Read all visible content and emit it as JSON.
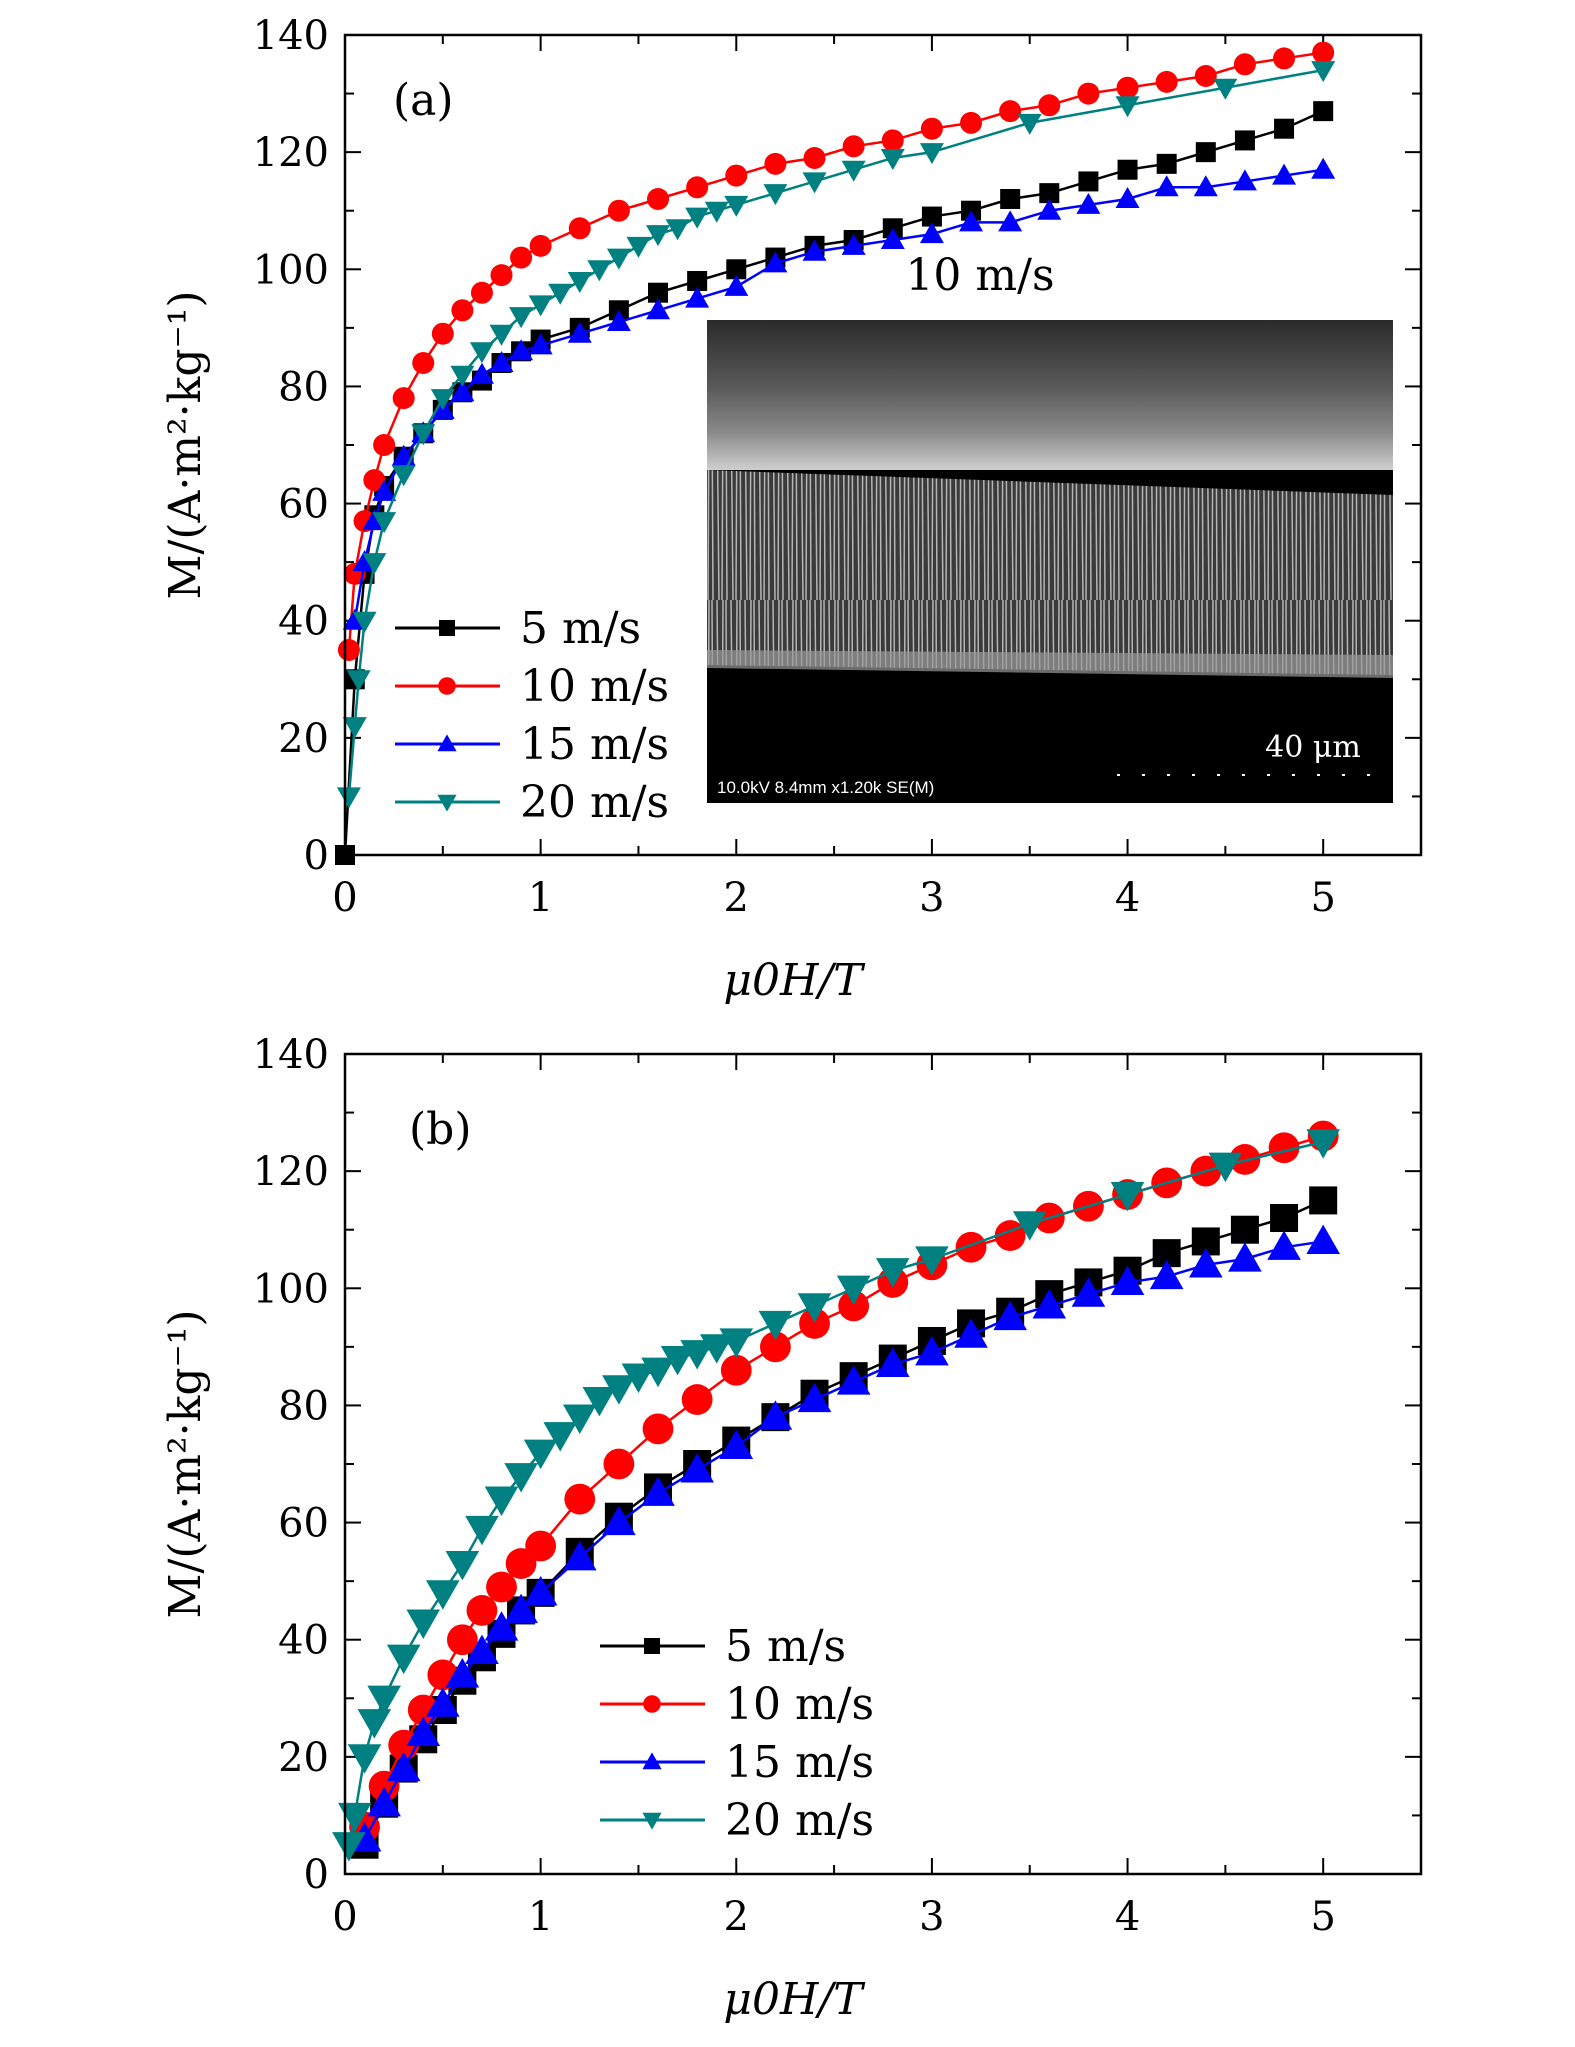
{
  "chart_data": [
    {
      "type": "line",
      "panel_label": "(a)",
      "xlabel": "μ0H/T",
      "ylabel": "M/(A·m²·kg⁻¹)",
      "xlim": [
        0,
        5.5
      ],
      "ylim": [
        0,
        140
      ],
      "xticks": [
        "0",
        "1",
        "2",
        "3",
        "4",
        "5"
      ],
      "yticks": [
        "0",
        "20",
        "40",
        "60",
        "80",
        "100",
        "120",
        "140"
      ],
      "legend": "bottom-left",
      "grid": false,
      "inset": {
        "title": "10 m/s",
        "scale_bar": "40 μm",
        "info": "10.0kV 8.4mm x1.20k SE(M)"
      },
      "series": [
        {
          "name": "5 m/s",
          "color": "#000000",
          "marker": "square",
          "x": [
            0,
            0.05,
            0.1,
            0.15,
            0.2,
            0.3,
            0.4,
            0.5,
            0.6,
            0.7,
            0.8,
            0.9,
            1.0,
            1.2,
            1.4,
            1.6,
            1.8,
            2.0,
            2.2,
            2.4,
            2.6,
            2.8,
            3.0,
            3.2,
            3.4,
            3.6,
            3.8,
            4.0,
            4.2,
            4.4,
            4.6,
            4.8,
            5.0
          ],
          "y": [
            0,
            30,
            48,
            58,
            63,
            68,
            72,
            76,
            79,
            81,
            84,
            86,
            88,
            90,
            93,
            96,
            98,
            100,
            102,
            104,
            105,
            107,
            109,
            110,
            112,
            113,
            115,
            117,
            118,
            120,
            122,
            124,
            127
          ]
        },
        {
          "name": "10 m/s",
          "color": "#ff0000",
          "marker": "circle",
          "x": [
            0.02,
            0.05,
            0.1,
            0.15,
            0.2,
            0.3,
            0.4,
            0.5,
            0.6,
            0.7,
            0.8,
            0.9,
            1.0,
            1.2,
            1.4,
            1.6,
            1.8,
            2.0,
            2.2,
            2.4,
            2.6,
            2.8,
            3.0,
            3.2,
            3.4,
            3.6,
            3.8,
            4.0,
            4.2,
            4.4,
            4.6,
            4.8,
            5.0
          ],
          "y": [
            35,
            48,
            57,
            64,
            70,
            78,
            84,
            89,
            93,
            96,
            99,
            102,
            104,
            107,
            110,
            112,
            114,
            116,
            118,
            119,
            121,
            122,
            124,
            125,
            127,
            128,
            130,
            131,
            132,
            133,
            135,
            136,
            137
          ]
        },
        {
          "name": "15 m/s",
          "color": "#0000ff",
          "marker": "triangle-up",
          "x": [
            0.05,
            0.1,
            0.15,
            0.2,
            0.3,
            0.4,
            0.5,
            0.6,
            0.7,
            0.8,
            0.9,
            1.0,
            1.2,
            1.4,
            1.6,
            1.8,
            2.0,
            2.2,
            2.4,
            2.6,
            2.8,
            3.0,
            3.2,
            3.4,
            3.6,
            3.8,
            4.0,
            4.2,
            4.4,
            4.6,
            4.8,
            5.0
          ],
          "y": [
            40,
            50,
            57,
            62,
            68,
            72,
            76,
            79,
            82,
            84,
            86,
            87,
            89,
            91,
            93,
            95,
            97,
            101,
            103,
            104,
            105,
            106,
            108,
            108,
            110,
            111,
            112,
            114,
            114,
            115,
            116,
            117
          ]
        },
        {
          "name": "20 m/s",
          "color": "#008080",
          "marker": "triangle-down",
          "x": [
            0.02,
            0.05,
            0.07,
            0.1,
            0.15,
            0.2,
            0.3,
            0.4,
            0.5,
            0.6,
            0.7,
            0.8,
            0.9,
            1.0,
            1.1,
            1.2,
            1.3,
            1.4,
            1.5,
            1.6,
            1.7,
            1.8,
            1.9,
            2.0,
            2.2,
            2.4,
            2.6,
            2.8,
            3.0,
            3.5,
            4.0,
            4.5,
            5.0
          ],
          "y": [
            10,
            22,
            30,
            40,
            50,
            57,
            65,
            72,
            78,
            82,
            86,
            89,
            92,
            94,
            96,
            98,
            100,
            102,
            104,
            106,
            107,
            109,
            110,
            111,
            113,
            115,
            117,
            119,
            120,
            125,
            128,
            131,
            134
          ]
        }
      ]
    },
    {
      "type": "line",
      "panel_label": "(b)",
      "xlabel": "μ0H/T",
      "ylabel": "M/(A·m²·kg⁻¹)",
      "xlim": [
        0,
        5.5
      ],
      "ylim": [
        0,
        140
      ],
      "xticks": [
        "0",
        "1",
        "2",
        "3",
        "4",
        "5"
      ],
      "yticks": [
        "0",
        "20",
        "40",
        "60",
        "80",
        "100",
        "120",
        "140"
      ],
      "legend": "bottom-center",
      "grid": false,
      "series": [
        {
          "name": "5 m/s",
          "color": "#000000",
          "marker": "square",
          "x": [
            0.1,
            0.2,
            0.3,
            0.4,
            0.5,
            0.6,
            0.7,
            0.8,
            0.9,
            1.0,
            1.2,
            1.4,
            1.6,
            1.8,
            2.0,
            2.2,
            2.4,
            2.6,
            2.8,
            3.0,
            3.2,
            3.4,
            3.6,
            3.8,
            4.0,
            4.2,
            4.4,
            4.6,
            4.8,
            5.0
          ],
          "y": [
            5,
            12,
            18,
            23,
            28,
            33,
            37,
            41,
            45,
            48,
            55,
            61,
            66,
            70,
            74,
            78,
            82,
            85,
            88,
            91,
            94,
            96,
            99,
            101,
            103,
            106,
            108,
            110,
            112,
            115
          ]
        },
        {
          "name": "10 m/s",
          "color": "#ff0000",
          "marker": "circle",
          "x": [
            0.1,
            0.2,
            0.3,
            0.4,
            0.5,
            0.6,
            0.7,
            0.8,
            0.9,
            1.0,
            1.2,
            1.4,
            1.6,
            1.8,
            2.0,
            2.2,
            2.4,
            2.6,
            2.8,
            3.0,
            3.2,
            3.4,
            3.6,
            3.8,
            4.0,
            4.2,
            4.4,
            4.6,
            4.8,
            5.0
          ],
          "y": [
            8,
            15,
            22,
            28,
            34,
            40,
            45,
            49,
            53,
            56,
            64,
            70,
            76,
            81,
            86,
            90,
            94,
            97,
            101,
            104,
            107,
            109,
            112,
            114,
            116,
            118,
            120,
            122,
            124,
            126
          ]
        },
        {
          "name": "15 m/s",
          "color": "#0000ff",
          "marker": "triangle-up",
          "x": [
            0.1,
            0.2,
            0.3,
            0.4,
            0.5,
            0.6,
            0.7,
            0.8,
            0.9,
            1.0,
            1.2,
            1.4,
            1.6,
            1.8,
            2.0,
            2.2,
            2.4,
            2.6,
            2.8,
            3.0,
            3.2,
            3.4,
            3.6,
            3.8,
            4.0,
            4.2,
            4.4,
            4.6,
            4.8,
            5.0
          ],
          "y": [
            6,
            12,
            18,
            24,
            29,
            34,
            38,
            42,
            45,
            48,
            54,
            60,
            65,
            69,
            73,
            78,
            81,
            84,
            87,
            89,
            92,
            95,
            97,
            99,
            101,
            102,
            104,
            105,
            107,
            108
          ]
        },
        {
          "name": "20 m/s",
          "color": "#008080",
          "marker": "triangle-down",
          "x": [
            0.02,
            0.05,
            0.1,
            0.15,
            0.2,
            0.3,
            0.4,
            0.5,
            0.6,
            0.7,
            0.8,
            0.9,
            1.0,
            1.1,
            1.2,
            1.3,
            1.4,
            1.5,
            1.6,
            1.7,
            1.8,
            1.9,
            2.0,
            2.2,
            2.4,
            2.6,
            2.8,
            3.0,
            3.5,
            4.0,
            4.5,
            5.0
          ],
          "y": [
            5,
            10,
            20,
            26,
            30,
            37,
            43,
            48,
            53,
            59,
            64,
            68,
            72,
            75,
            78,
            81,
            83,
            85,
            86,
            88,
            89,
            90,
            91,
            94,
            97,
            100,
            103,
            105,
            111,
            116,
            121,
            125
          ]
        }
      ]
    }
  ]
}
